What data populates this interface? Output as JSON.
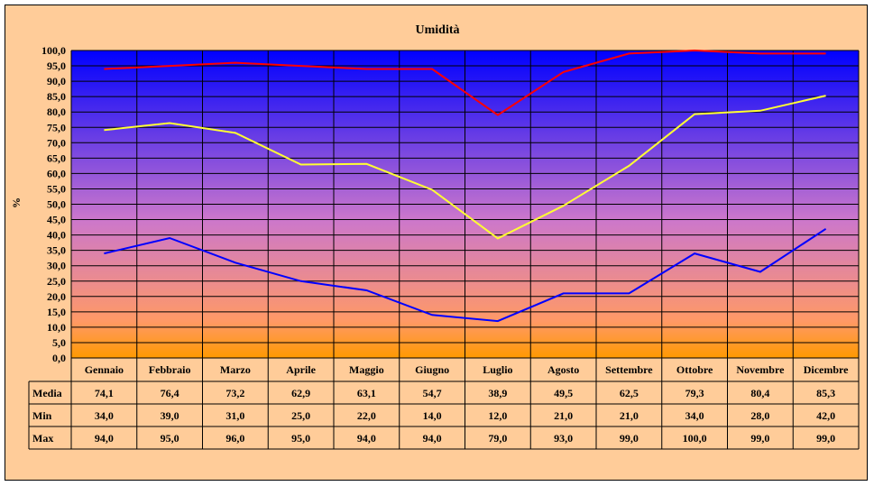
{
  "chart_data": {
    "type": "line",
    "title": "Umidità",
    "ylabel": "%",
    "xlabel": "",
    "ylim": [
      0,
      100
    ],
    "ytick_step": 5,
    "ytick_labels": [
      "0,0",
      "5,0",
      "10,0",
      "15,0",
      "20,0",
      "25,0",
      "30,0",
      "35,0",
      "40,0",
      "45,0",
      "50,0",
      "55,0",
      "60,0",
      "65,0",
      "70,0",
      "75,0",
      "80,0",
      "85,0",
      "90,0",
      "95,0",
      "100,0"
    ],
    "grid": true,
    "legend": "data-table-below",
    "categories": [
      "Gennaio",
      "Febbraio",
      "Marzo",
      "Aprile",
      "Maggio",
      "Giugno",
      "Luglio",
      "Agosto",
      "Settembre",
      "Ottobre",
      "Novembre",
      "Dicembre"
    ],
    "series": [
      {
        "name": "Media",
        "color": "#ffff33",
        "values": [
          74.1,
          76.4,
          73.2,
          62.9,
          63.1,
          54.7,
          38.9,
          49.5,
          62.5,
          79.3,
          80.4,
          85.3
        ],
        "labels": [
          "74,1",
          "76,4",
          "73,2",
          "62,9",
          "63,1",
          "54,7",
          "38,9",
          "49,5",
          "62,5",
          "79,3",
          "80,4",
          "85,3"
        ]
      },
      {
        "name": "Min",
        "color": "#0000ff",
        "values": [
          34.0,
          39.0,
          31.0,
          25.0,
          22.0,
          14.0,
          12.0,
          21.0,
          21.0,
          34.0,
          28.0,
          42.0
        ],
        "labels": [
          "34,0",
          "39,0",
          "31,0",
          "25,0",
          "22,0",
          "14,0",
          "12,0",
          "21,0",
          "21,0",
          "34,0",
          "28,0",
          "42,0"
        ]
      },
      {
        "name": "Max",
        "color": "#ff0000",
        "values": [
          94.0,
          95.0,
          96.0,
          95.0,
          94.0,
          94.0,
          79.0,
          93.0,
          99.0,
          100.0,
          99.0,
          99.0
        ],
        "labels": [
          "94,0",
          "95,0",
          "96,0",
          "95,0",
          "94,0",
          "94,0",
          "79,0",
          "93,0",
          "99,0",
          "100,0",
          "99,0",
          "99,0"
        ]
      }
    ],
    "background_gradient": {
      "top": "#0000ff",
      "bottom": "#ff9900"
    }
  }
}
